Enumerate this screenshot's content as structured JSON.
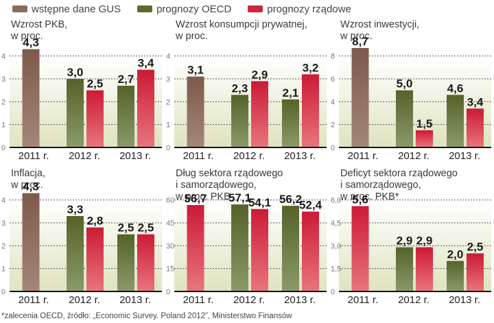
{
  "legend": [
    {
      "label": "wstępne dane GUS",
      "color": "#8a6a5a"
    },
    {
      "label": "prognozy OECD",
      "color": "#5b6a2e"
    },
    {
      "label": "prognozy rządowe",
      "color": "#d0263c"
    }
  ],
  "footnote": "*zalecenia OECD, źródło: „Economic Survey. Poland 2012”, Ministerstwo Finansów",
  "chart_data": [
    {
      "type": "bar",
      "title": "Wzrost PKB,\nw proc.",
      "categories": [
        "2011 r.",
        "2012 r.",
        "2013 r."
      ],
      "yticks": [
        "0",
        "1",
        "2",
        "3",
        "4"
      ],
      "ylim": [
        0,
        4.5
      ],
      "bars": [
        {
          "category": 0,
          "series": "gus",
          "value": 4.3,
          "label": "4,3"
        },
        {
          "category": 1,
          "series": "oecd",
          "value": 3.0,
          "label": "3,0"
        },
        {
          "category": 1,
          "series": "gov",
          "value": 2.5,
          "label": "2,5"
        },
        {
          "category": 2,
          "series": "oecd",
          "value": 2.7,
          "label": "2,7"
        },
        {
          "category": 2,
          "series": "gov",
          "value": 3.4,
          "label": "3,4"
        }
      ]
    },
    {
      "type": "bar",
      "title": "Wzrost konsumpcji prywatnej,\nw proc.",
      "categories": [
        "2011 r.",
        "2012 r.",
        "2013 r."
      ],
      "yticks": [
        "0",
        "1",
        "2",
        "3",
        "4"
      ],
      "ylim": [
        0,
        4.5
      ],
      "bars": [
        {
          "category": 0,
          "series": "gus",
          "value": 3.1,
          "label": "3,1"
        },
        {
          "category": 1,
          "series": "oecd",
          "value": 2.3,
          "label": "2,3"
        },
        {
          "category": 1,
          "series": "gov",
          "value": 2.9,
          "label": "2,9"
        },
        {
          "category": 2,
          "series": "oecd",
          "value": 2.1,
          "label": "2,1"
        },
        {
          "category": 2,
          "series": "gov",
          "value": 3.2,
          "label": "3,2"
        }
      ]
    },
    {
      "type": "bar",
      "title": "Wzrost inwestycji,\nw proc.",
      "categories": [
        "2011 r.",
        "2012 r.",
        "2013 r."
      ],
      "yticks": [
        "0",
        "2",
        "4",
        "6",
        "8"
      ],
      "ylim": [
        0,
        9
      ],
      "bars": [
        {
          "category": 0,
          "series": "gus",
          "value": 8.7,
          "label": "8,7"
        },
        {
          "category": 1,
          "series": "oecd",
          "value": 5.0,
          "label": "5,0"
        },
        {
          "category": 1,
          "series": "gov",
          "value": 1.5,
          "label": "1,5"
        },
        {
          "category": 2,
          "series": "oecd",
          "value": 4.6,
          "label": "4,6"
        },
        {
          "category": 2,
          "series": "gov",
          "value": 3.4,
          "label": "3,4"
        }
      ]
    },
    {
      "type": "bar",
      "title": "Inflacja,\nw proc.",
      "categories": [
        "2011 r.",
        "2012 r.",
        "2013 r."
      ],
      "yticks": [
        "0",
        "1",
        "2",
        "3",
        "4"
      ],
      "ylim": [
        0,
        4.5
      ],
      "bars": [
        {
          "category": 0,
          "series": "gus",
          "value": 4.3,
          "label": "4,3"
        },
        {
          "category": 1,
          "series": "oecd",
          "value": 3.3,
          "label": "3,3"
        },
        {
          "category": 1,
          "series": "gov",
          "value": 2.8,
          "label": "2,8"
        },
        {
          "category": 2,
          "series": "oecd",
          "value": 2.5,
          "label": "2,5"
        },
        {
          "category": 2,
          "series": "gov",
          "value": 2.5,
          "label": "2,5"
        }
      ]
    },
    {
      "type": "bar",
      "title": "Dług sektora rządowego\ni samorządowego,\nw proc. PKB",
      "categories": [
        "2011 r.",
        "2012 r.",
        "2013 r."
      ],
      "yticks": [
        "0",
        "15",
        "30",
        "45",
        "60"
      ],
      "ylim": [
        0,
        67.5
      ],
      "bars": [
        {
          "category": 0,
          "series": "gov",
          "value": 56.7,
          "label": "56,7"
        },
        {
          "category": 1,
          "series": "oecd",
          "value": 57.1,
          "label": "57,1"
        },
        {
          "category": 1,
          "series": "gov",
          "value": 54.1,
          "label": "54,1"
        },
        {
          "category": 2,
          "series": "oecd",
          "value": 56.2,
          "label": "56,2"
        },
        {
          "category": 2,
          "series": "gov",
          "value": 52.4,
          "label": "52,4"
        }
      ]
    },
    {
      "type": "bar",
      "title": "Deficyt sektora rządowego\ni samorządowego,\nw proc. PKB*",
      "categories": [
        "2011 r.",
        "2012 r.",
        "2013 r."
      ],
      "yticks": [
        "0",
        "1,5",
        "3,0",
        "4,5",
        "6,0"
      ],
      "ylim": [
        0,
        6.75
      ],
      "bars": [
        {
          "category": 0,
          "series": "gov",
          "value": 5.6,
          "label": "5,6"
        },
        {
          "category": 1,
          "series": "oecd",
          "value": 2.9,
          "label": "2,9"
        },
        {
          "category": 1,
          "series": "gov",
          "value": 2.9,
          "label": "2,9"
        },
        {
          "category": 2,
          "series": "oecd",
          "value": 2.0,
          "label": "2,0"
        },
        {
          "category": 2,
          "series": "gov",
          "value": 2.5,
          "label": "2,5"
        }
      ]
    }
  ]
}
